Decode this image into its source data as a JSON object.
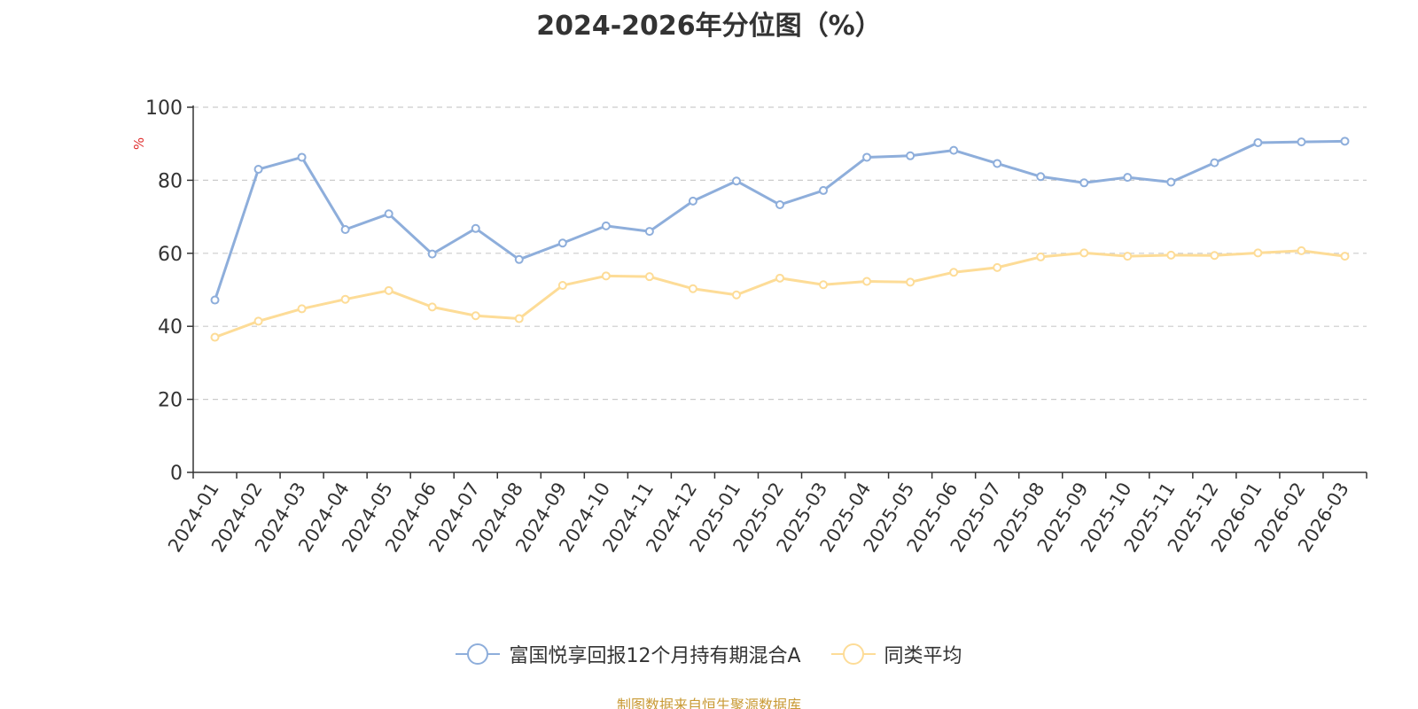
{
  "chart_data": {
    "type": "line",
    "title": "2024-2026年分位图（%）",
    "ylabel": "%",
    "xlabel": "",
    "ylim": [
      0,
      100
    ],
    "yticks": [
      0,
      20,
      40,
      60,
      80,
      100
    ],
    "grid": true,
    "legend_position": "bottom-center",
    "categories": [
      "2024-01",
      "2024-02",
      "2024-03",
      "2024-04",
      "2024-05",
      "2024-06",
      "2024-07",
      "2024-08",
      "2024-09",
      "2024-10",
      "2024-11",
      "2024-12",
      "2025-01",
      "2025-02",
      "2025-03",
      "2025-04",
      "2025-05",
      "2025-06",
      "2025-07",
      "2025-08",
      "2025-09",
      "2025-10",
      "2025-11",
      "2025-12",
      "2026-01",
      "2026-02",
      "2026-03"
    ],
    "series": [
      {
        "name": "富国悦享回报12个月持有期混合A",
        "color": "#8eaedb",
        "values": [
          47.2,
          83.0,
          86.3,
          66.5,
          70.8,
          59.8,
          66.8,
          58.3,
          62.8,
          67.5,
          66.0,
          74.3,
          79.8,
          73.3,
          77.2,
          86.3,
          86.7,
          88.2,
          84.6,
          81.0,
          79.3,
          80.8,
          79.5,
          84.8,
          90.3,
          90.5,
          90.7
        ]
      },
      {
        "name": "同类平均",
        "color": "#fddc97",
        "values": [
          37.0,
          41.4,
          44.8,
          47.4,
          49.8,
          45.3,
          42.9,
          42.1,
          51.2,
          53.8,
          53.6,
          50.3,
          48.6,
          53.2,
          51.4,
          52.3,
          52.1,
          54.8,
          56.1,
          59.0,
          60.1,
          59.2,
          59.5,
          59.4,
          60.1,
          60.7,
          59.2
        ]
      }
    ]
  },
  "source_note": "制图数据来自恒生聚源数据库"
}
